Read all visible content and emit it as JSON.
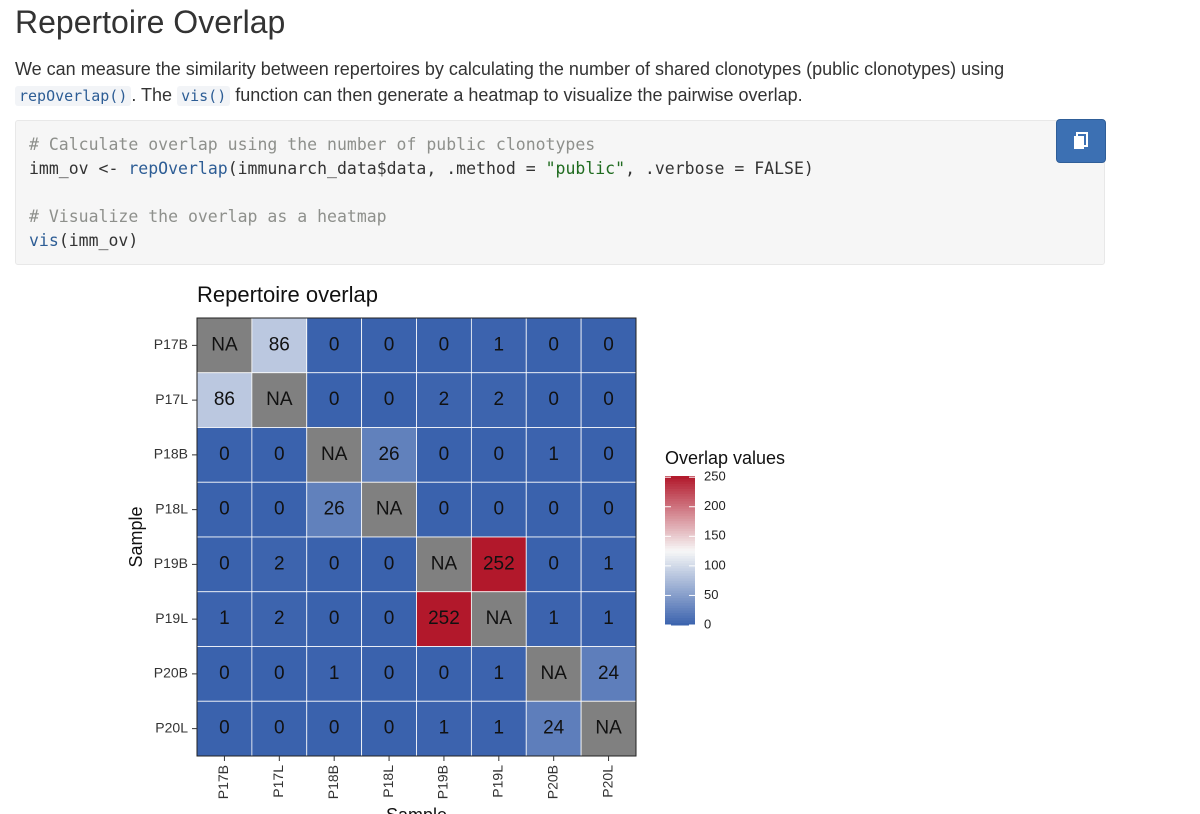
{
  "header": {
    "title": "Repertoire Overlap"
  },
  "intro": {
    "lines": [
      [
        {
          "text": "We can measure the similarity between repertoires by calculating the number of shared clonotypes (public clonotypes) using"
        }
      ],
      [
        {
          "code": "repOverlap()"
        },
        {
          "text": ". The "
        },
        {
          "code": "vis()"
        },
        {
          "text": " function can then generate a heatmap to visualize the pairwise overlap."
        }
      ]
    ]
  },
  "code": {
    "lines": [
      [
        {
          "text": "# Calculate overlap using the number of public clonotypes",
          "color": "#8e908c"
        }
      ],
      [
        {
          "text": "imm_ov <- ",
          "color": "#333333"
        },
        {
          "text": "repOverlap",
          "color": "#2d5d95"
        },
        {
          "text": "(immunarch_data$data, .method = ",
          "color": "#333333"
        },
        {
          "text": "\"public\"",
          "color": "#1f6b1f"
        },
        {
          "text": ", .verbose = FALSE)",
          "color": "#333333"
        }
      ],
      [],
      [
        {
          "text": "# Visualize the overlap as a heatmap",
          "color": "#8e908c"
        }
      ],
      [
        {
          "text": "vis",
          "color": "#2d5d95"
        },
        {
          "text": "(imm_ov)",
          "color": "#333333"
        }
      ]
    ]
  },
  "chart_data": {
    "type": "heatmap",
    "title": "Repertoire overlap",
    "x_label": "Sample",
    "y_label": "Sample",
    "x_categories": [
      "P17B",
      "P17L",
      "P18B",
      "P18L",
      "P19B",
      "P19L",
      "P20B",
      "P20L"
    ],
    "y_categories": [
      "P17B",
      "P17L",
      "P18B",
      "P18L",
      "P19B",
      "P19L",
      "P20B",
      "P20L"
    ],
    "values": [
      [
        null,
        86,
        0,
        0,
        0,
        1,
        0,
        0
      ],
      [
        86,
        null,
        0,
        0,
        2,
        2,
        0,
        0
      ],
      [
        0,
        0,
        null,
        26,
        0,
        0,
        1,
        0
      ],
      [
        0,
        0,
        26,
        null,
        0,
        0,
        0,
        0
      ],
      [
        0,
        2,
        0,
        0,
        null,
        252,
        0,
        1
      ],
      [
        1,
        2,
        0,
        0,
        252,
        null,
        1,
        1
      ],
      [
        0,
        0,
        1,
        0,
        0,
        1,
        null,
        24
      ],
      [
        0,
        0,
        0,
        0,
        1,
        1,
        24,
        null
      ]
    ],
    "na_label": "NA",
    "na_color": "#808080",
    "legend_title": "Overlap values",
    "zlim": [
      0,
      252
    ],
    "zticks": [
      0,
      50,
      100,
      150,
      200,
      250
    ],
    "colors": [
      "#3a62ad",
      "#f7f7f7",
      "#b2182b"
    ]
  }
}
